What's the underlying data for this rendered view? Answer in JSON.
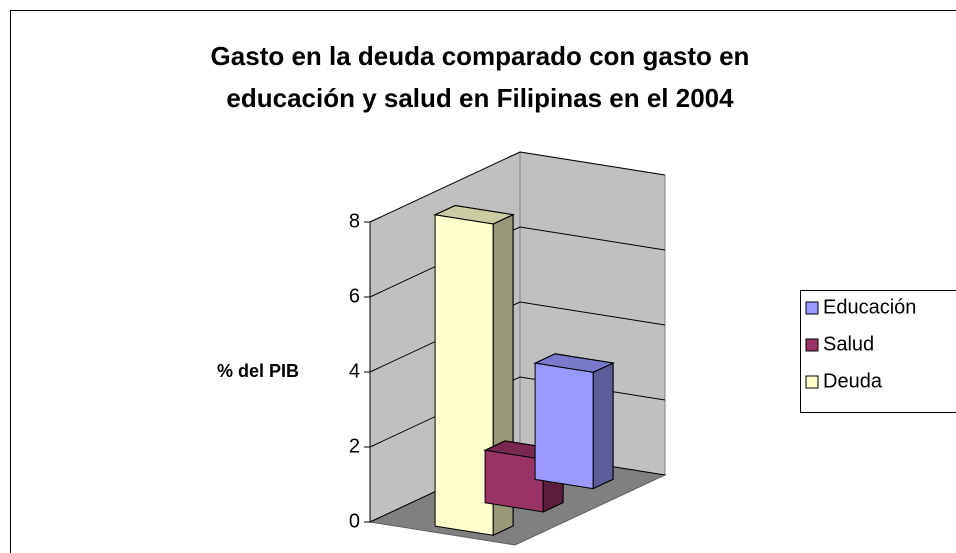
{
  "chart_data": {
    "type": "bar3d",
    "title": [
      "Gasto en la deuda comparado con gasto en",
      "educación y salud en Filipinas en el 2004"
    ],
    "y_label": "% del PIB",
    "series": [
      {
        "name": "Educación",
        "color": "#9999ff",
        "values": [
          3.1
        ]
      },
      {
        "name": "Salud",
        "color": "#993366",
        "values": [
          1.4
        ]
      },
      {
        "name": "Deuda",
        "color": "#ffffcc",
        "values": [
          8.3
        ]
      }
    ],
    "ylim": [
      0,
      8
    ],
    "yticks": [
      0,
      2,
      4,
      6,
      8
    ],
    "grid": true,
    "legend": "right"
  }
}
